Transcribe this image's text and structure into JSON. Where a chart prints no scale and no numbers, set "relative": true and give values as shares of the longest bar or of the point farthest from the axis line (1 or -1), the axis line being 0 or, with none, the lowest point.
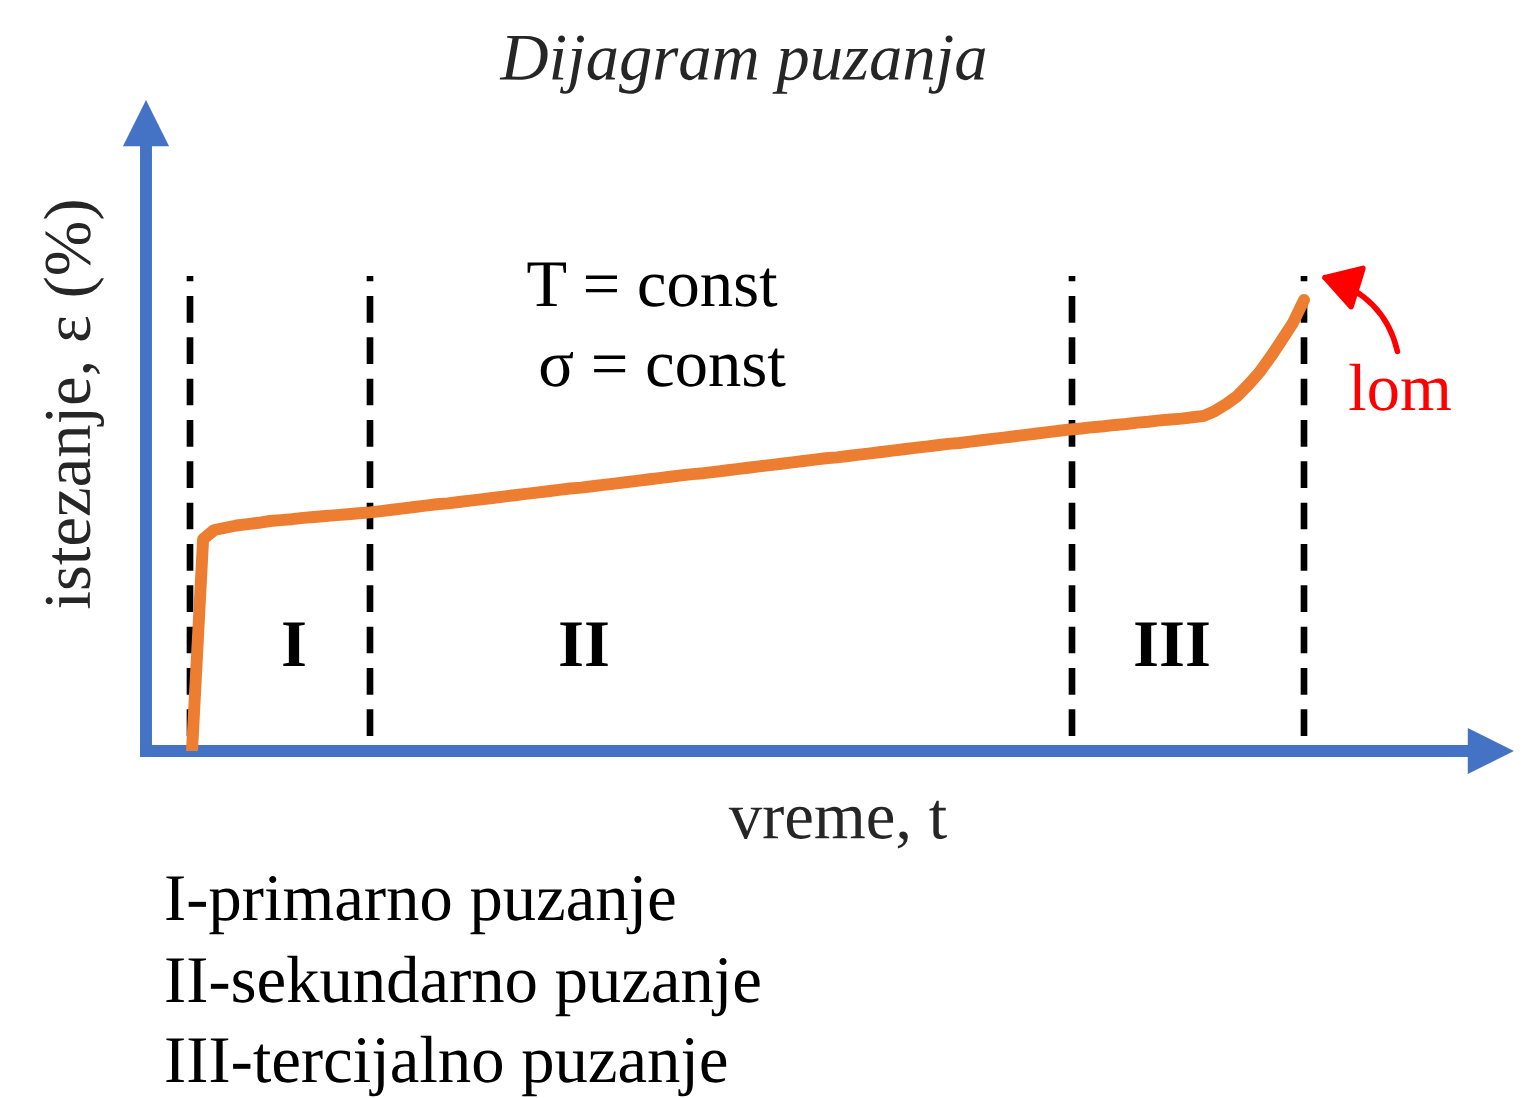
{
  "chart_data": {
    "type": "line",
    "title": "Dijagram puzanja",
    "xlabel": "vreme, t",
    "ylabel": "istezanje, ε (%)",
    "relative": true,
    "grid": "x",
    "categories": [
      null,
      null,
      null,
      null,
      null,
      null,
      null,
      null,
      null,
      null,
      null,
      null,
      null,
      null,
      null,
      null,
      null,
      null,
      null,
      null,
      null,
      null,
      null,
      null,
      null,
      null,
      null,
      null,
      null,
      null,
      null,
      null,
      null,
      null,
      null,
      null,
      null,
      null,
      null,
      null,
      null,
      null,
      null,
      null,
      null,
      null,
      null,
      null,
      null,
      null,
      null,
      null,
      null,
      null,
      null,
      null,
      null,
      null,
      null,
      null,
      null,
      null,
      null,
      null,
      null,
      null,
      null,
      null,
      null,
      null,
      null,
      null,
      null,
      null,
      null,
      null,
      null,
      null,
      null,
      null,
      null,
      null,
      null,
      null,
      null,
      null,
      null,
      null,
      null,
      null,
      null,
      null,
      null,
      null,
      null,
      null,
      null,
      null,
      null,
      null,
      null
    ],
    "series": [
      {
        "color": "#ed7d31",
        "values": [
          0,
          0.47,
          0.49,
          0.495,
          0.5,
          0.503,
          0.506,
          0.51,
          0.512,
          0.514,
          0.517,
          0.519,
          0.521,
          0.523,
          0.525,
          0.527,
          0.529,
          0.532,
          0.535,
          0.538,
          0.541,
          0.544,
          0.547,
          0.549,
          0.552,
          0.555,
          0.558,
          0.561,
          0.564,
          0.567,
          0.57,
          0.573,
          0.576,
          0.579,
          0.582,
          0.584,
          0.587,
          0.59,
          0.593,
          0.596,
          0.599,
          0.602,
          0.605,
          0.608,
          0.611,
          0.614,
          0.616,
          0.619,
          0.622,
          0.625,
          0.628,
          0.631,
          0.634,
          0.637,
          0.64,
          0.643,
          0.646,
          0.649,
          0.651,
          0.654,
          0.657,
          0.66,
          0.663,
          0.666,
          0.669,
          0.672,
          0.675,
          0.678,
          0.681,
          0.683,
          0.686,
          0.689,
          0.692,
          0.695,
          0.698,
          0.701,
          0.704,
          0.707,
          0.71,
          0.713,
          0.715,
          0.718,
          0.72,
          0.723,
          0.725,
          0.728,
          0.73,
          0.733,
          0.735,
          0.737,
          0.74,
          0.743,
          0.754,
          0.769,
          0.787,
          0.812,
          0.84,
          0.874,
          0.911,
          0.949,
          1
        ]
      }
    ],
    "annotations": [
      "T = const",
      "σ = const",
      "I",
      "II",
      "III",
      "lom",
      "I-primarno puzanje",
      "II-sekundarno puzanje",
      "III-tercijalno puzanje"
    ]
  }
}
